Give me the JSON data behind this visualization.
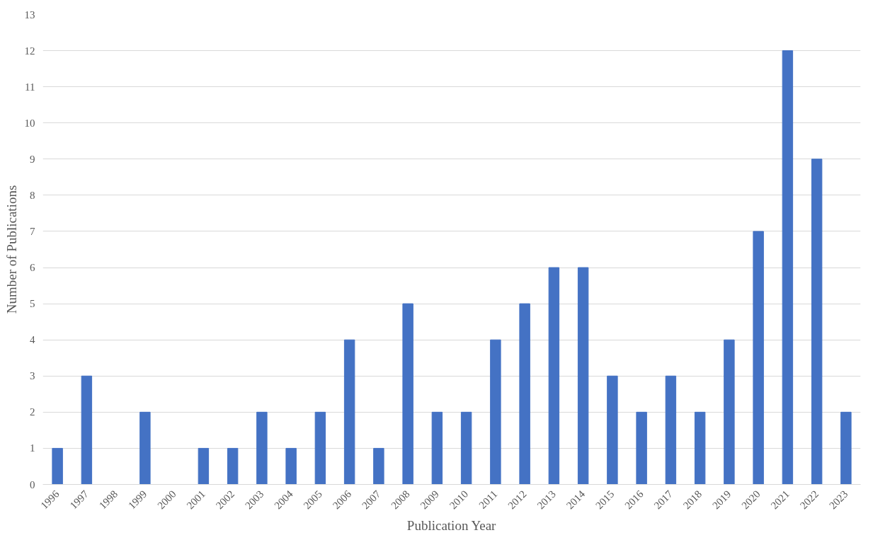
{
  "chart_data": {
    "type": "bar",
    "xlabel": "Publication Year",
    "ylabel": "Number of Publications",
    "categories": [
      "1996",
      "1997",
      "1998",
      "1999",
      "2000",
      "2001",
      "2002",
      "2003",
      "2004",
      "2005",
      "2006",
      "2007",
      "2008",
      "2009",
      "2010",
      "2011",
      "2012",
      "2013",
      "2014",
      "2015",
      "2016",
      "2017",
      "2018",
      "2019",
      "2020",
      "2021",
      "2022",
      "2023"
    ],
    "values": [
      1,
      3,
      0,
      2,
      0,
      1,
      1,
      2,
      1,
      2,
      4,
      1,
      5,
      2,
      2,
      4,
      5,
      6,
      6,
      3,
      2,
      3,
      2,
      4,
      7,
      12,
      9,
      2
    ],
    "color": "#4472c4",
    "ylim": [
      0,
      13
    ],
    "yticks": [
      0,
      1,
      2,
      3,
      4,
      5,
      6,
      7,
      8,
      9,
      10,
      11,
      12,
      13
    ],
    "grid": "y"
  }
}
